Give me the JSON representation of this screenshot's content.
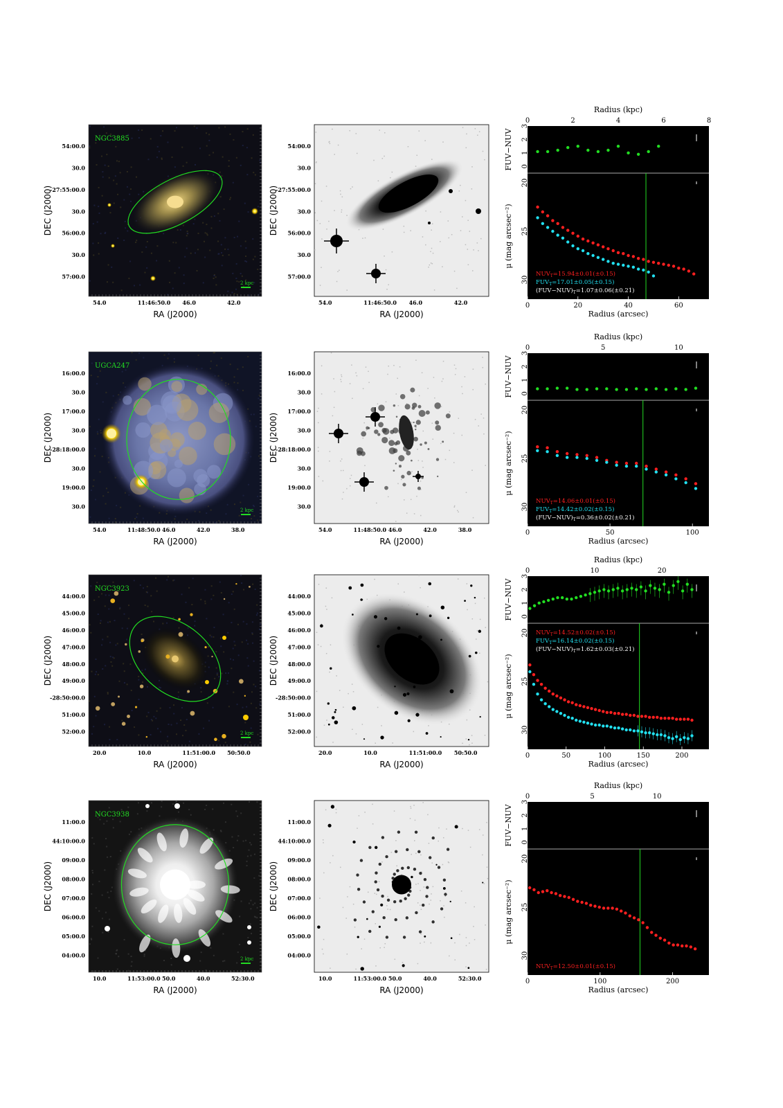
{
  "colors": {
    "nuv": "#ff2020",
    "fuv": "#22e0f0",
    "color": "#22dd22",
    "ellipse": "#22dd22",
    "text_white": "#ffffff"
  },
  "labels": {
    "ra_axis": "RA (J2000)",
    "dec_axis": "DEC (J2000)",
    "radius_kpc": "Radius (kpc)",
    "radius_arcsec": "Radius (arcsec)",
    "fuv_nuv": "FUV−NUV",
    "mu": "μ (mag arcsec⁻²)",
    "kpc_bar": "2 kpc"
  },
  "rows": [
    {
      "name": "NGC3885",
      "color_style": "yellow",
      "ra_ticks": [
        "54.0",
        "11:46:50.0",
        "46.0",
        "42.0"
      ],
      "dec_ticks": [
        "54:00.0",
        "30.0",
        "-27:55:00.0",
        "30.0",
        "56:00.0",
        "30.0",
        "57:00.0"
      ],
      "ellipse": {
        "cx": 0.5,
        "cy": 0.45,
        "rx": 0.3,
        "ry": 0.13,
        "angle": -28
      },
      "kpc_top": [
        "0",
        "2",
        "4",
        "6",
        "8"
      ],
      "x_ticks": [
        "0",
        "20",
        "40",
        "60"
      ],
      "color_yticks": [
        "0",
        "1",
        "2",
        "3"
      ],
      "mu_yticks": [
        "20",
        "25",
        "30"
      ],
      "mags": [
        {
          "text": "NUV_T=15.94±0.01(±0.15)",
          "cls": "nuv"
        },
        {
          "text": "FUV_T=17.01±0.05(±0.15)",
          "cls": "fuv"
        },
        {
          "text": "(FUV−NUV)_T=1.07±0.06(±0.21)",
          "cls": "white"
        }
      ],
      "chart_data": {
        "type": "scatter",
        "x_arcsec_range": [
          0,
          72
        ],
        "kpc_range": [
          0,
          8
        ],
        "color_ylim": [
          3,
          -0.5
        ],
        "mu_ylim": [
          19,
          32
        ],
        "vline": 47,
        "color": {
          "x": [
            4,
            8,
            12,
            16,
            20,
            24,
            28,
            32,
            36,
            40,
            44,
            48,
            52
          ],
          "y": [
            1.1,
            1.1,
            1.2,
            1.4,
            1.5,
            1.2,
            1.1,
            1.2,
            1.5,
            1.0,
            0.9,
            1.1,
            1.5
          ]
        },
        "nuv": {
          "x": [
            4,
            6,
            8,
            10,
            12,
            14,
            16,
            18,
            20,
            22,
            24,
            26,
            28,
            30,
            32,
            34,
            36,
            38,
            40,
            42,
            44,
            46,
            48,
            50,
            52,
            54,
            56,
            58,
            60,
            62,
            64,
            66
          ],
          "y": [
            22.5,
            23.0,
            23.4,
            23.9,
            24.2,
            24.6,
            24.9,
            25.2,
            25.5,
            25.8,
            26.0,
            26.2,
            26.4,
            26.6,
            26.8,
            27.0,
            27.2,
            27.3,
            27.5,
            27.6,
            27.8,
            27.9,
            28.1,
            28.2,
            28.3,
            28.4,
            28.5,
            28.6,
            28.8,
            28.9,
            29.1,
            29.4
          ]
        },
        "fuv": {
          "x": [
            4,
            6,
            8,
            10,
            12,
            14,
            16,
            18,
            20,
            22,
            24,
            26,
            28,
            30,
            32,
            34,
            36,
            38,
            40,
            42,
            44,
            46,
            48,
            50
          ],
          "y": [
            23.6,
            24.2,
            24.6,
            25.0,
            25.4,
            25.7,
            26.1,
            26.5,
            26.8,
            27.0,
            27.3,
            27.5,
            27.7,
            27.9,
            28.1,
            28.3,
            28.4,
            28.5,
            28.6,
            28.7,
            28.9,
            29.0,
            29.2,
            29.6
          ]
        }
      }
    },
    {
      "name": "UGCA247",
      "color_style": "blue",
      "ra_ticks": [
        "54.0",
        "11:48:50.0",
        "46.0",
        "42.0",
        "38.0"
      ],
      "dec_ticks": [
        "16:00.0",
        "30.0",
        "17:00.0",
        "30.0",
        "-28:18:00.0",
        "30.0",
        "19:00.0",
        "30.0"
      ],
      "ellipse": {
        "cx": 0.52,
        "cy": 0.51,
        "rx": 0.3,
        "ry": 0.35,
        "angle": 0
      },
      "kpc_top": [
        "0",
        "5",
        "10"
      ],
      "x_ticks": [
        "0",
        "50",
        "100"
      ],
      "color_yticks": [
        "0",
        "1",
        "2",
        "3"
      ],
      "mu_yticks": [
        "20",
        "25",
        "30"
      ],
      "mags": [
        {
          "text": "NUV_T=14.06±0.01(±0.15)",
          "cls": "nuv"
        },
        {
          "text": "FUV_T=14.42±0.02(±0.15)",
          "cls": "fuv"
        },
        {
          "text": "(FUV−NUV)_T=0.36±0.02(±0.21)",
          "cls": "white"
        }
      ],
      "chart_data": {
        "type": "scatter",
        "x_arcsec_range": [
          0,
          110
        ],
        "kpc_range": [
          0,
          12
        ],
        "color_ylim": [
          3,
          -0.5
        ],
        "mu_ylim": [
          19,
          32
        ],
        "vline": 70,
        "color": {
          "x": [
            6,
            12,
            18,
            24,
            30,
            36,
            42,
            48,
            54,
            60,
            66,
            72,
            78,
            84,
            90,
            96,
            102
          ],
          "y": [
            0.35,
            0.35,
            0.4,
            0.4,
            0.3,
            0.3,
            0.35,
            0.35,
            0.3,
            0.3,
            0.35,
            0.3,
            0.35,
            0.3,
            0.35,
            0.3,
            0.4
          ]
        },
        "nuv": {
          "x": [
            6,
            12,
            18,
            24,
            30,
            36,
            42,
            48,
            54,
            60,
            66,
            72,
            78,
            84,
            90,
            96,
            102
          ],
          "y": [
            23.8,
            23.9,
            24.3,
            24.5,
            24.6,
            24.7,
            24.9,
            25.2,
            25.4,
            25.5,
            25.5,
            25.8,
            26.1,
            26.4,
            26.7,
            27.1,
            27.6
          ]
        },
        "fuv": {
          "x": [
            6,
            12,
            18,
            24,
            30,
            36,
            42,
            48,
            54,
            60,
            66,
            72,
            78,
            84,
            90,
            96,
            102
          ],
          "y": [
            24.2,
            24.3,
            24.7,
            24.9,
            24.9,
            25.0,
            25.2,
            25.4,
            25.7,
            25.8,
            25.8,
            26.1,
            26.4,
            26.7,
            27.1,
            27.5,
            28.1
          ]
        }
      }
    },
    {
      "name": "NGC3923",
      "color_style": "dark",
      "ra_ticks": [
        "20.0",
        "10.0",
        "11:51:00.0",
        "50:50.0"
      ],
      "dec_ticks": [
        "44:00.0",
        "45:00.0",
        "46:00.0",
        "47:00.0",
        "48:00.0",
        "49:00.0",
        "-28:50:00.0",
        "51:00.0",
        "52:00.0"
      ],
      "ellipse": {
        "cx": 0.5,
        "cy": 0.49,
        "rx": 0.3,
        "ry": 0.2,
        "angle": 40
      },
      "kpc_top": [
        "0",
        "10",
        "20"
      ],
      "x_ticks": [
        "0",
        "50",
        "100",
        "150",
        "200"
      ],
      "color_yticks": [
        "0",
        "1",
        "2",
        "3"
      ],
      "mu_yticks": [
        "20",
        "25",
        "30"
      ],
      "mags": [
        {
          "text": "NUV_T=14.52±0.02(±0.15)",
          "cls": "nuv"
        },
        {
          "text": "FUV_T=16.14±0.02(±0.15)",
          "cls": "fuv"
        },
        {
          "text": "(FUV−NUV)_T=1.62±0.03(±0.21)",
          "cls": "white"
        }
      ],
      "chart_data": {
        "type": "scatter",
        "x_arcsec_range": [
          0,
          235
        ],
        "kpc_range": [
          0,
          27
        ],
        "color_ylim": [
          3,
          -0.5
        ],
        "mu_ylim": [
          19,
          32
        ],
        "vline": 145,
        "color": {
          "x": [
            3,
            9,
            15,
            21,
            27,
            33,
            39,
            45,
            51,
            57,
            63,
            69,
            75,
            81,
            87,
            93,
            99,
            105,
            111,
            117,
            123,
            129,
            135,
            141,
            147,
            153,
            159,
            165,
            171,
            177,
            183,
            189,
            195,
            201,
            207,
            213
          ],
          "y": [
            0.6,
            0.8,
            1.0,
            1.1,
            1.2,
            1.3,
            1.4,
            1.4,
            1.3,
            1.3,
            1.4,
            1.5,
            1.6,
            1.7,
            1.8,
            1.9,
            2.0,
            1.9,
            2.0,
            2.1,
            1.9,
            2.0,
            2.1,
            2.0,
            2.2,
            1.9,
            2.3,
            2.1,
            2.0,
            2.4,
            1.8,
            2.3,
            2.6,
            1.9,
            2.4,
            2.0
          ]
        },
        "nuv": {
          "x": [
            3,
            8,
            13,
            18,
            23,
            28,
            33,
            38,
            43,
            48,
            53,
            58,
            63,
            68,
            73,
            78,
            83,
            88,
            93,
            98,
            103,
            108,
            113,
            118,
            123,
            128,
            133,
            138,
            143,
            148,
            153,
            158,
            163,
            168,
            173,
            178,
            183,
            188,
            193,
            198,
            203,
            208,
            213
          ],
          "y": [
            23.3,
            24.3,
            24.9,
            25.3,
            25.7,
            26.0,
            26.3,
            26.5,
            26.7,
            26.9,
            27.1,
            27.2,
            27.4,
            27.5,
            27.6,
            27.7,
            27.8,
            27.9,
            28.0,
            28.1,
            28.2,
            28.2,
            28.3,
            28.3,
            28.4,
            28.4,
            28.5,
            28.5,
            28.6,
            28.6,
            28.6,
            28.7,
            28.7,
            28.7,
            28.8,
            28.8,
            28.8,
            28.8,
            28.9,
            28.9,
            28.9,
            28.9,
            29.0
          ]
        },
        "fuv": {
          "x": [
            3,
            8,
            13,
            18,
            23,
            28,
            33,
            38,
            43,
            48,
            53,
            58,
            63,
            68,
            73,
            78,
            83,
            88,
            93,
            98,
            103,
            108,
            113,
            118,
            123,
            128,
            133,
            138,
            143,
            148,
            153,
            158,
            163,
            168,
            173,
            178,
            183,
            188,
            193,
            198,
            203,
            208,
            213
          ],
          "y": [
            24.0,
            25.3,
            26.3,
            26.9,
            27.3,
            27.6,
            27.9,
            28.1,
            28.3,
            28.5,
            28.7,
            28.8,
            29.0,
            29.1,
            29.2,
            29.3,
            29.4,
            29.5,
            29.5,
            29.6,
            29.6,
            29.7,
            29.8,
            29.8,
            29.9,
            30.0,
            30.0,
            30.1,
            30.1,
            30.2,
            30.3,
            30.3,
            30.4,
            30.5,
            30.5,
            30.6,
            30.8,
            30.9,
            30.7,
            31.0,
            30.8,
            30.9,
            30.6
          ]
        }
      }
    },
    {
      "name": "NGC3938",
      "color_style": "gray",
      "ra_ticks": [
        "10.0",
        "11:53:00.0",
        "50.0",
        "40.0",
        "52:30.0"
      ],
      "dec_ticks": [
        "11:00.0",
        "44:10:00.0",
        "09:00.0",
        "08:00.0",
        "07:00.0",
        "06:00.0",
        "05:00.0",
        "04:00.0"
      ],
      "ellipse": {
        "cx": 0.5,
        "cy": 0.49,
        "rx": 0.31,
        "ry": 0.35,
        "angle": 0
      },
      "kpc_top": [
        "0",
        "5",
        "10"
      ],
      "x_ticks": [
        "0",
        "100",
        "200"
      ],
      "color_yticks": [
        "0",
        "1",
        "2",
        "3"
      ],
      "mu_yticks": [
        "20",
        "25",
        "30"
      ],
      "mags": [
        {
          "text": "NUV_T=12.50±0.01(±0.15)",
          "cls": "nuv"
        }
      ],
      "chart_data": {
        "type": "scatter",
        "x_arcsec_range": [
          0,
          250
        ],
        "kpc_range": [
          0,
          14
        ],
        "color_ylim": [
          3,
          -0.5
        ],
        "mu_ylim": [
          19,
          32
        ],
        "vline": 155,
        "color": {
          "x": [],
          "y": []
        },
        "nuv": {
          "x": [
            3,
            9,
            15,
            21,
            27,
            33,
            39,
            45,
            51,
            57,
            63,
            69,
            75,
            81,
            87,
            93,
            99,
            105,
            111,
            117,
            123,
            129,
            135,
            141,
            147,
            153,
            159,
            165,
            171,
            177,
            183,
            189,
            195,
            201,
            207,
            213,
            219,
            225,
            231
          ],
          "y": [
            23.0,
            23.2,
            23.5,
            23.4,
            23.3,
            23.5,
            23.6,
            23.8,
            23.9,
            24.0,
            24.2,
            24.4,
            24.5,
            24.6,
            24.8,
            24.9,
            25.0,
            25.1,
            25.1,
            25.1,
            25.2,
            25.4,
            25.6,
            25.9,
            26.1,
            26.3,
            26.6,
            27.1,
            27.6,
            27.9,
            28.2,
            28.4,
            28.7,
            28.9,
            28.9,
            29.0,
            29.0,
            29.1,
            29.3
          ]
        },
        "fuv": {
          "x": [],
          "y": []
        }
      }
    }
  ]
}
